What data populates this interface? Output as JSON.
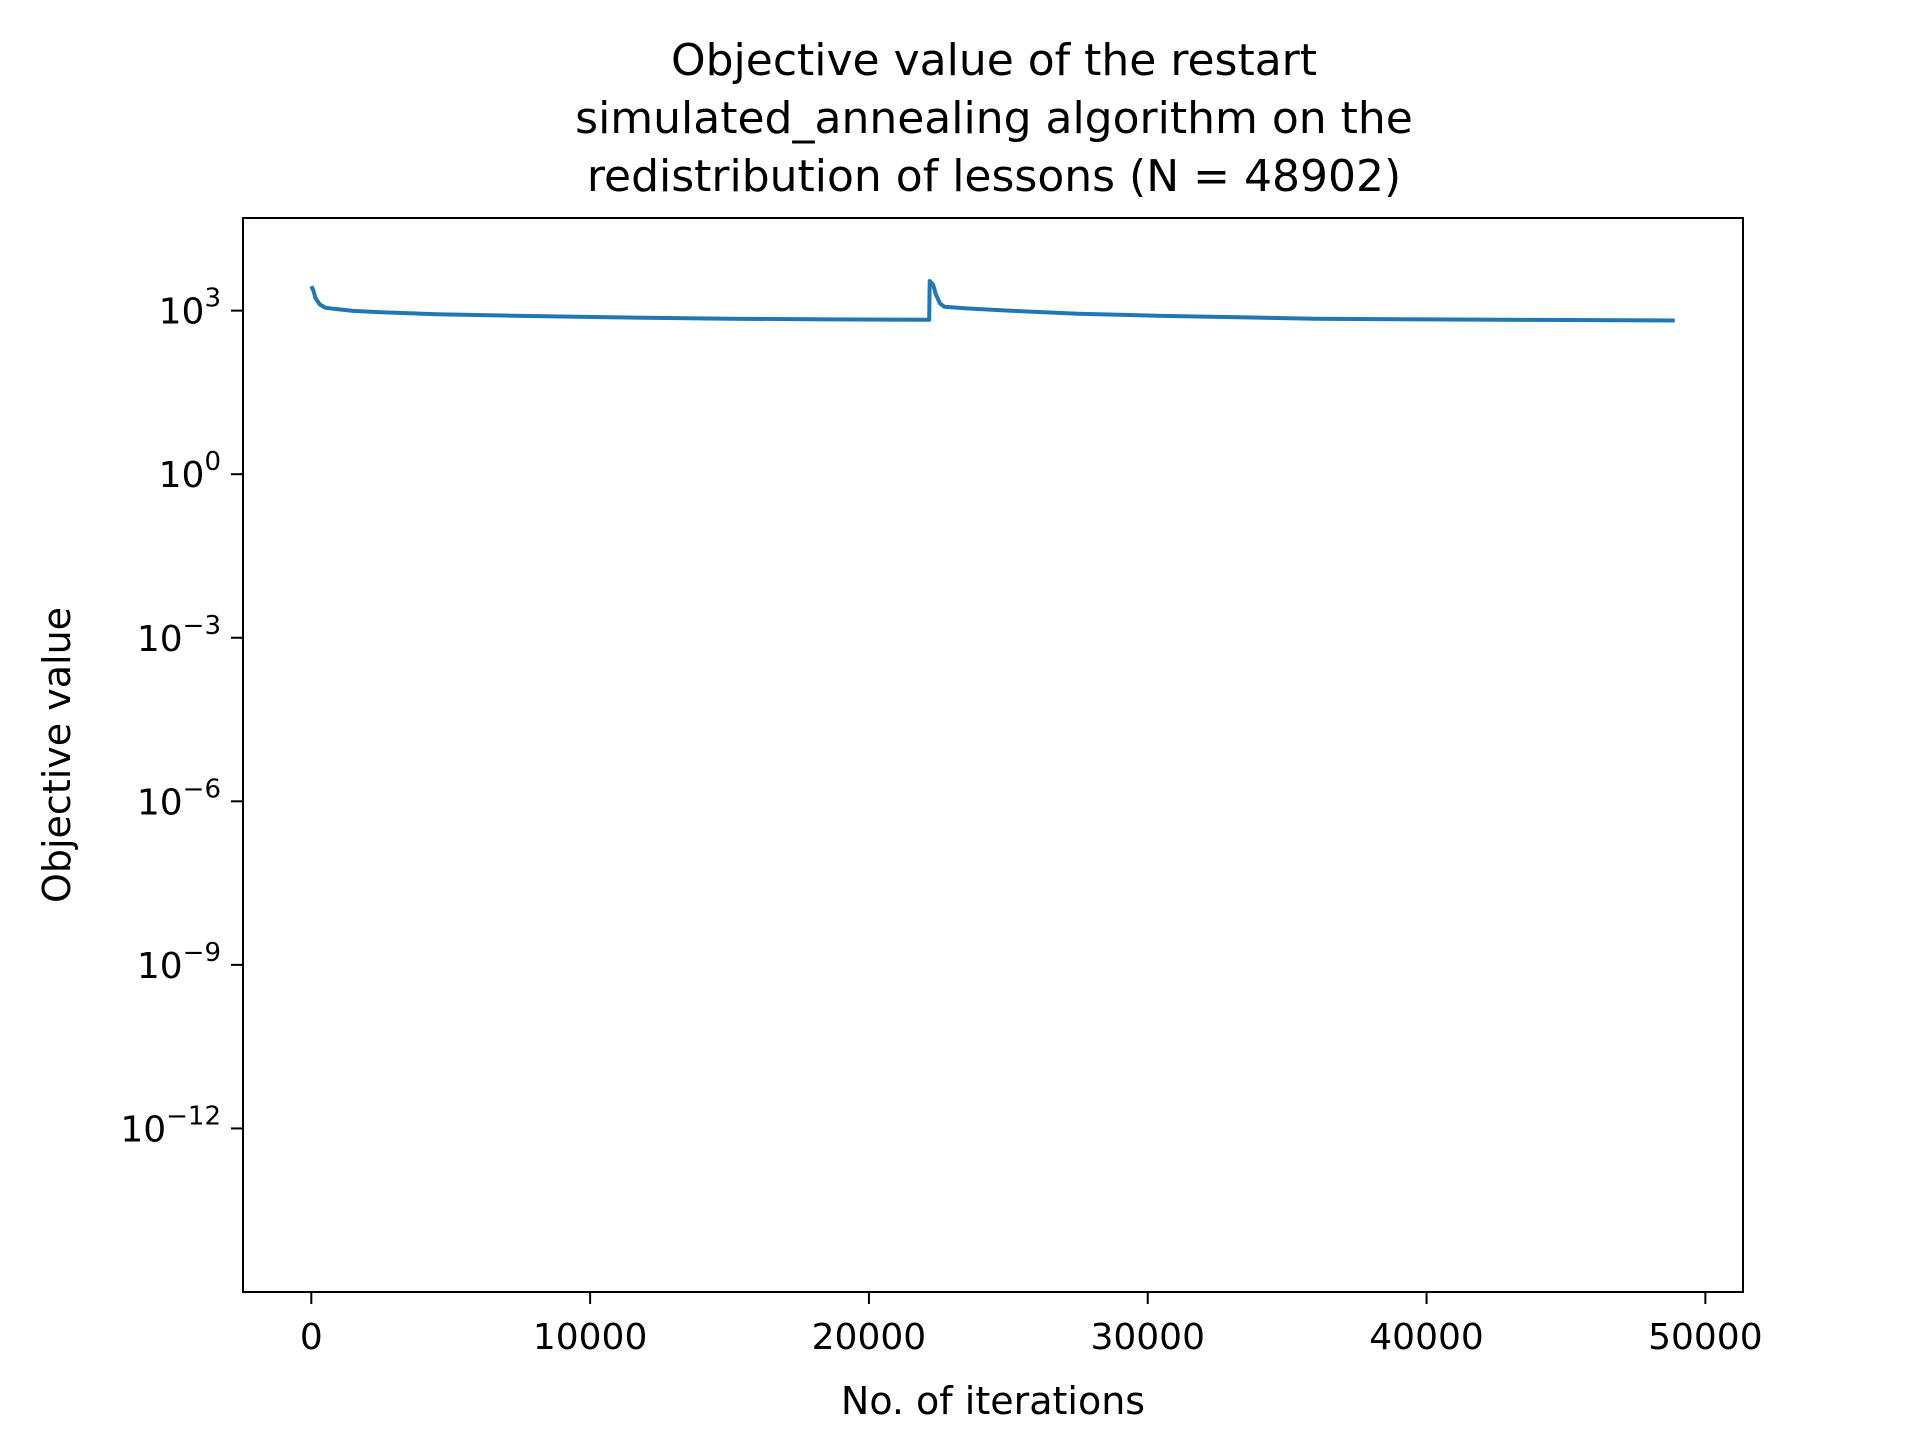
{
  "chart_data": {
    "type": "line",
    "title_lines": [
      "Objective value of the restart",
      "simulated_annealing algorithm on the",
      "redistribution of lessons (N = 48902)"
    ],
    "xlabel": "No. of iterations",
    "ylabel": "Objective value",
    "x_scale": "linear",
    "y_scale": "log",
    "xlim": [
      -2450,
      51350
    ],
    "ylim": [
      1e-15,
      50000
    ],
    "x_ticks": [
      0,
      10000,
      20000,
      30000,
      40000,
      50000
    ],
    "x_tick_labels": [
      "0",
      "10000",
      "20000",
      "30000",
      "40000",
      "50000"
    ],
    "y_ticks": [
      {
        "value": 1000,
        "base": "10",
        "exp": "3"
      },
      {
        "value": 1,
        "base": "10",
        "exp": "0"
      },
      {
        "value": 0.001,
        "base": "10",
        "exp": "−3"
      },
      {
        "value": 1e-06,
        "base": "10",
        "exp": "−6"
      },
      {
        "value": 1e-09,
        "base": "10",
        "exp": "−9"
      },
      {
        "value": 1e-12,
        "base": "10",
        "exp": "−12"
      }
    ],
    "grid": false,
    "series": [
      {
        "color": "#1f77b4",
        "x": [
          0,
          80,
          150,
          300,
          500,
          800,
          1500,
          2500,
          4500,
          7500,
          11000,
          15000,
          18500,
          22150,
          22160,
          22180,
          22300,
          22400,
          22550,
          22700,
          23500,
          25000,
          27500,
          30500,
          33500,
          36000,
          40000,
          44000,
          48902
        ],
        "y": [
          2800,
          2300,
          1700,
          1300,
          1130,
          1080,
          990,
          930,
          860,
          800,
          750,
          710,
          690,
          680,
          680,
          3500,
          3000,
          2000,
          1350,
          1180,
          1100,
          1000,
          880,
          800,
          750,
          710,
          690,
          675,
          660
        ]
      }
    ]
  },
  "colors": {
    "series_line": "#1f77b4",
    "axes": "#000000",
    "background": "#ffffff"
  }
}
